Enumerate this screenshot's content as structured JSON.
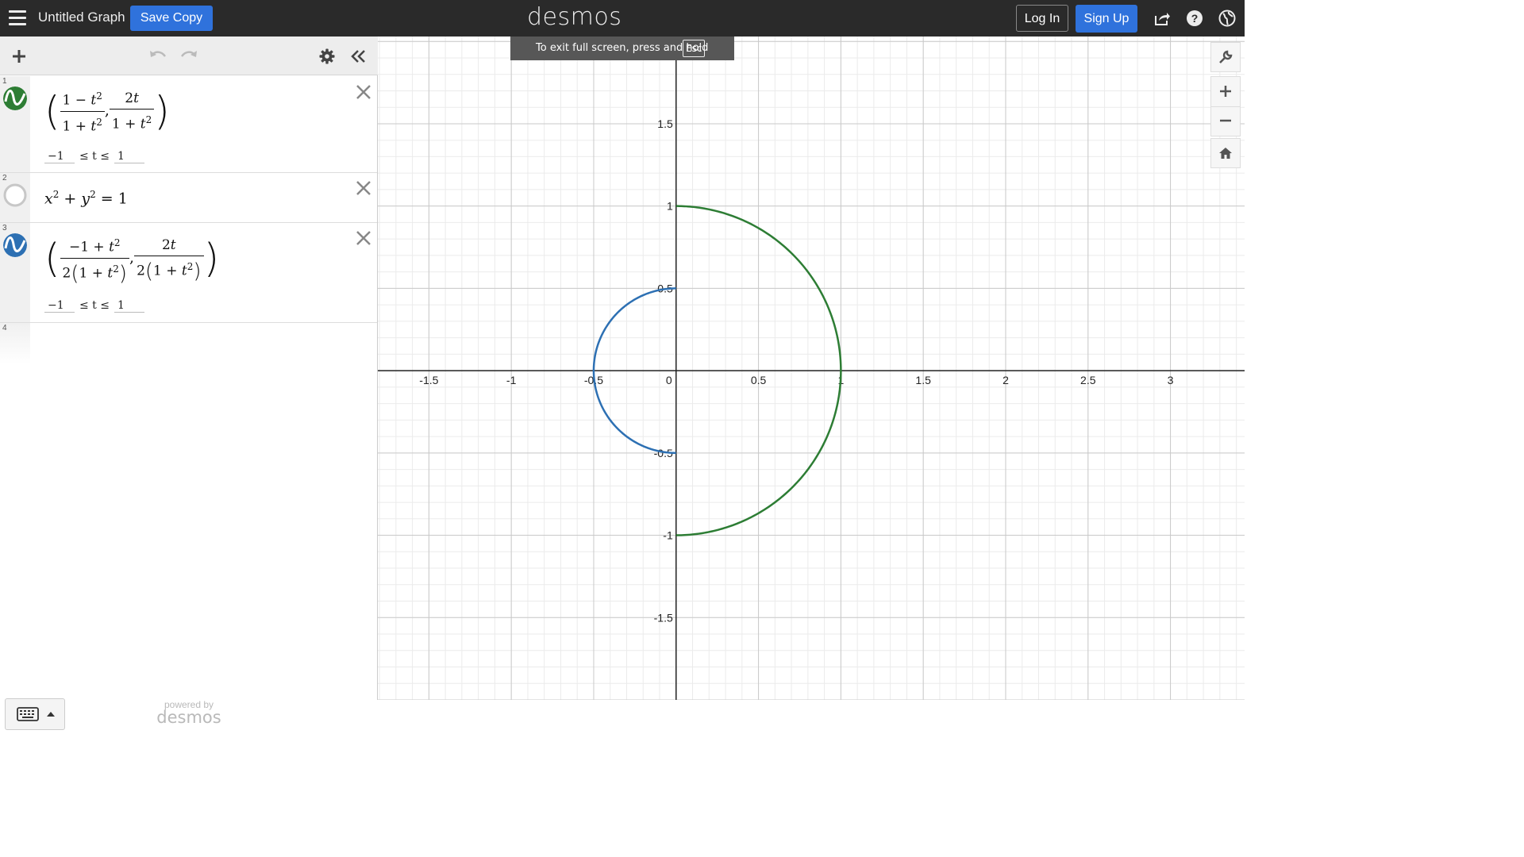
{
  "topbar": {
    "title": "Untitled Graph",
    "save_copy": "Save Copy",
    "brand": "desmos",
    "login": "Log In",
    "signup": "Sign Up",
    "colors": {
      "bar": "#2a2a2a",
      "accent": "#2f72dc"
    }
  },
  "fullscreen_banner": {
    "text": "To exit full screen, press and hold",
    "key": "Esc"
  },
  "expressions": [
    {
      "number": "1",
      "color": "#2d7d34",
      "icon": "parametric-wave-icon",
      "domain": {
        "min": "−1",
        "var_label": "≤ t ≤",
        "max": "1"
      }
    },
    {
      "number": "2",
      "color": "#888888",
      "icon": "hidden-circle-icon"
    },
    {
      "number": "3",
      "color": "#2d70b3",
      "icon": "parametric-wave-icon",
      "domain": {
        "min": "−1",
        "var_label": "≤ t ≤",
        "max": "1"
      }
    },
    {
      "number": "4"
    }
  ],
  "powered_by": {
    "small": "powered by",
    "big": "desmos"
  },
  "graph": {
    "x_ticks": [
      "-1.5",
      "-1",
      "-0.5",
      "0",
      "0.5",
      "1",
      "1.5",
      "2",
      "2.5",
      "3"
    ],
    "y_ticks": [
      "1.5",
      "1",
      "0.5",
      "-0.5",
      "-1",
      "-1.5"
    ],
    "x_range": [
      -1.81,
      3.45
    ],
    "y_range": [
      -2.0,
      2.03
    ],
    "curves": [
      {
        "name": "expr1",
        "color": "#2d7d34",
        "center": [
          0,
          0
        ],
        "radius": 1,
        "t_range": [
          -1,
          1
        ]
      },
      {
        "name": "expr3",
        "color": "#2d70b3",
        "center": [
          0,
          0
        ],
        "radius": 0.5,
        "t_range": [
          -1,
          1
        ]
      }
    ]
  }
}
